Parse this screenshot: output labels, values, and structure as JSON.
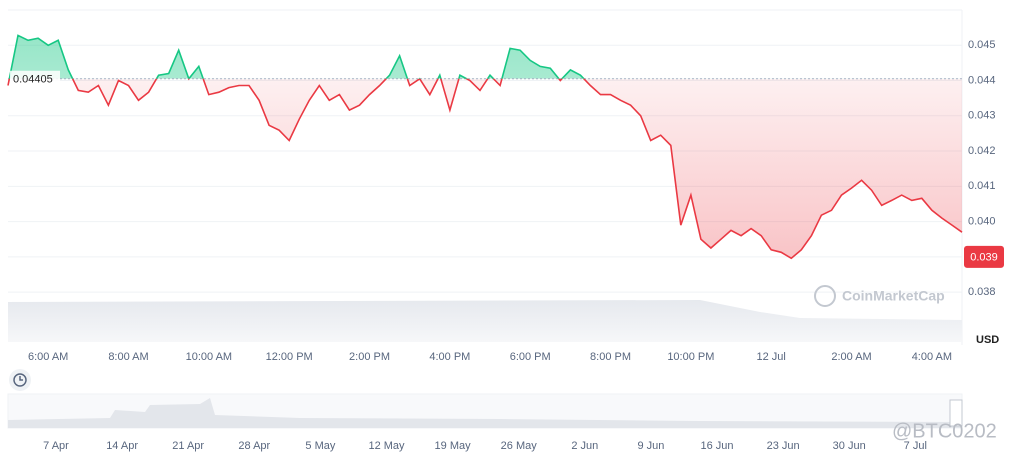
{
  "chart_data": {
    "type": "baseline-line",
    "categories": [
      null,
      null,
      null,
      null,
      "6:00 AM",
      null,
      null,
      null,
      null,
      null,
      null,
      null,
      "8:00 AM",
      null,
      null,
      null,
      null,
      null,
      null,
      null,
      "10:00 AM",
      null,
      null,
      null,
      null,
      null,
      null,
      null,
      "12:00 PM",
      null,
      null,
      null,
      null,
      null,
      null,
      null,
      "2:00 PM",
      null,
      null,
      null,
      null,
      null,
      null,
      null,
      "4:00 PM",
      null,
      null,
      null,
      null,
      null,
      null,
      null,
      "6:00 PM",
      null,
      null,
      null,
      null,
      null,
      null,
      null,
      "8:00 PM",
      null,
      null,
      null,
      null,
      null,
      null,
      null,
      "10:00 PM",
      null,
      null,
      null,
      null,
      null,
      null,
      null,
      "12 Jul",
      null,
      null,
      null,
      null,
      null,
      null,
      null,
      "2:00 AM",
      null,
      null,
      null,
      null,
      null,
      null,
      null,
      "4:00 AM",
      null,
      null,
      null
    ],
    "values": [
      0.04386,
      0.04528,
      0.04514,
      0.0452,
      0.045,
      0.04514,
      0.0443,
      0.04372,
      0.04367,
      0.04386,
      0.0433,
      0.044,
      0.04386,
      0.04344,
      0.04367,
      0.04415,
      0.0442,
      0.04486,
      0.04405,
      0.0444,
      0.0436,
      0.04367,
      0.0438,
      0.04386,
      0.04386,
      0.04344,
      0.04273,
      0.04259,
      0.0423,
      0.0429,
      0.04344,
      0.04386,
      0.04344,
      0.0436,
      0.04316,
      0.0433,
      0.0436,
      0.04386,
      0.04415,
      0.0447,
      0.04386,
      0.04405,
      0.0436,
      0.04415,
      0.04316,
      0.04415,
      0.044,
      0.04372,
      0.04415,
      0.04386,
      0.04491,
      0.04486,
      0.04457,
      0.0444,
      0.04435,
      0.044,
      0.0443,
      0.04415,
      0.04386,
      0.0436,
      0.0436,
      0.04344,
      0.0433,
      0.043,
      0.0423,
      0.04245,
      0.04216,
      0.0399,
      0.04075,
      0.0395,
      0.03925,
      0.0395,
      0.03975,
      0.0396,
      0.0398,
      0.0396,
      0.0392,
      0.03913,
      0.03896,
      0.0392,
      0.0396,
      0.04018,
      0.04032,
      0.04075,
      0.04095,
      0.04117,
      0.04089,
      0.04046,
      0.0406,
      0.04075,
      0.0406,
      0.04066,
      0.04032,
      0.0401,
      0.0399,
      0.0397
    ],
    "baseline": 0.04405,
    "current_price": 0.039,
    "above_color": "#16c784",
    "below_color": "#ea3943",
    "ylim": [
      0.0365,
      0.046
    ],
    "yticks": [
      0.038,
      0.039,
      {
        "value": 0.04,
        "label": "0.040"
      },
      0.041,
      0.042,
      0.043,
      0.044,
      0.045
    ],
    "y_unit": "USD",
    "grid": true,
    "watermark": "CoinMarketCap"
  },
  "navigator": {
    "labels": [
      "7 Apr",
      "14 Apr",
      "21 Apr",
      "28 Apr",
      "5 May",
      "12 May",
      "19 May",
      "26 May",
      "2 Jun",
      "9 Jun",
      "16 Jun",
      "23 Jun",
      "30 Jun",
      "7 Jul"
    ]
  },
  "footer_watermark": "@BTC0202"
}
